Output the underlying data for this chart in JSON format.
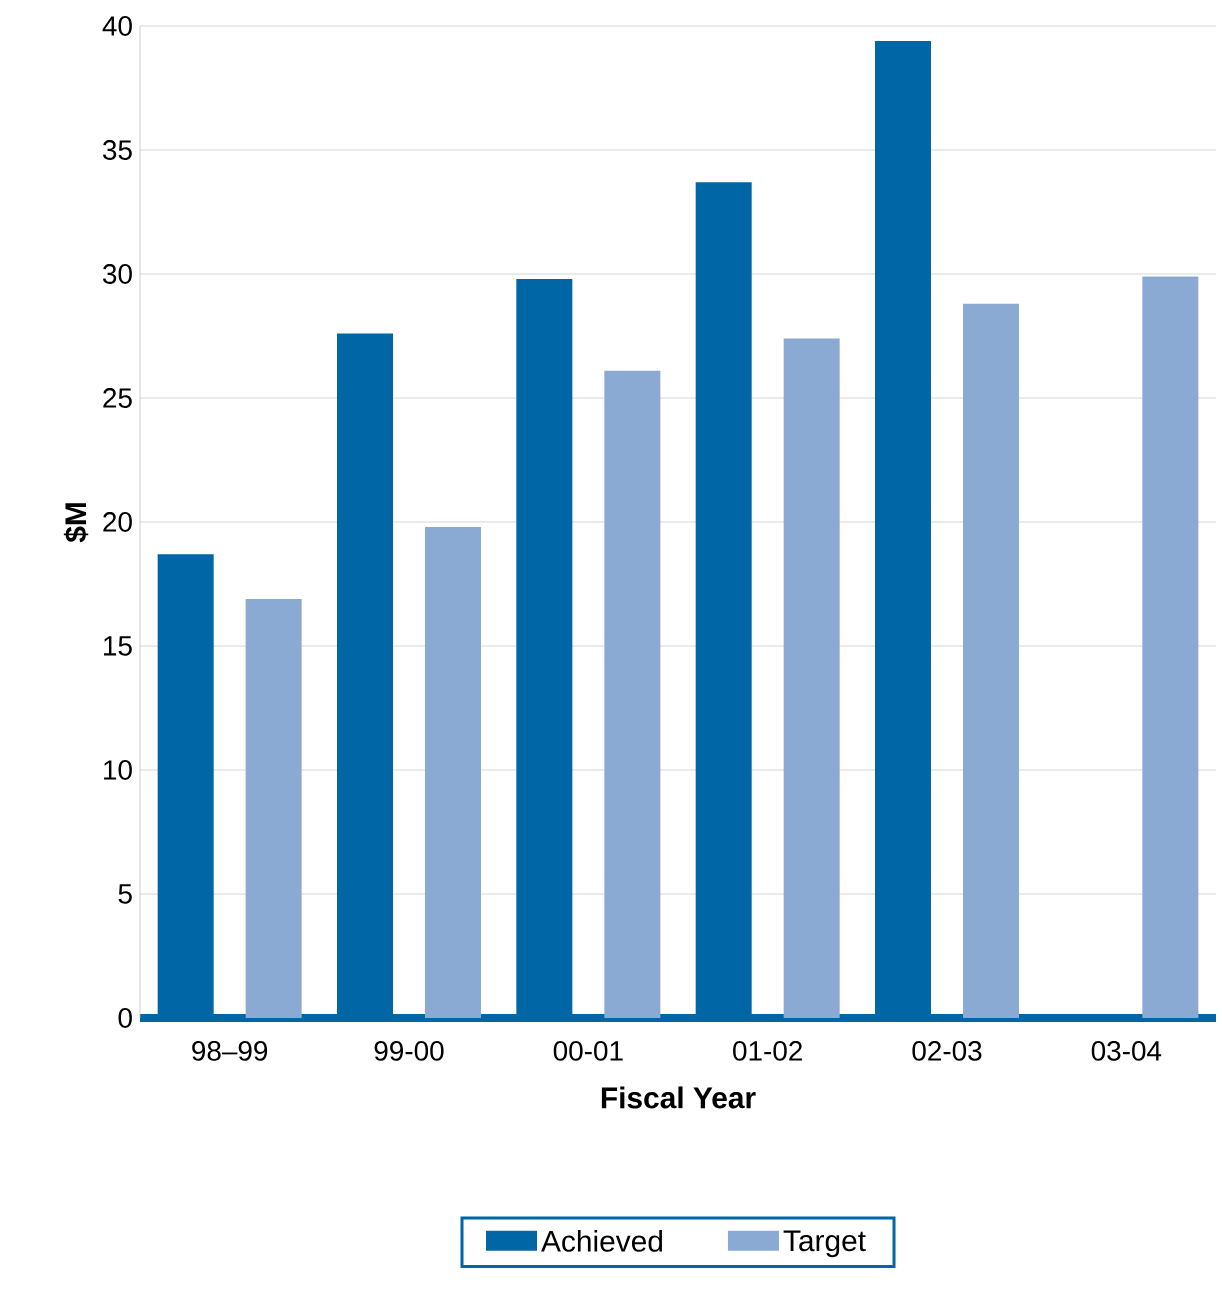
{
  "chart_data": {
    "type": "bar",
    "xlabel": "Fiscal Year",
    "ylabel": "$M",
    "categories": [
      "98–99",
      "99-00",
      "00-01",
      "01-02",
      "02-03",
      "03-04"
    ],
    "series": [
      {
        "name": "Achieved",
        "color": "#0066a6",
        "values": [
          18.7,
          27.6,
          29.8,
          33.7,
          39.4,
          null
        ]
      },
      {
        "name": "Target",
        "color": "#8aaad3",
        "values": [
          16.9,
          19.8,
          26.1,
          27.4,
          28.8,
          29.9
        ]
      }
    ],
    "ylim": [
      0,
      40
    ],
    "yticks": [
      0,
      5,
      10,
      15,
      20,
      25,
      30,
      35,
      40
    ],
    "grid": "y",
    "legend": "bottom"
  }
}
